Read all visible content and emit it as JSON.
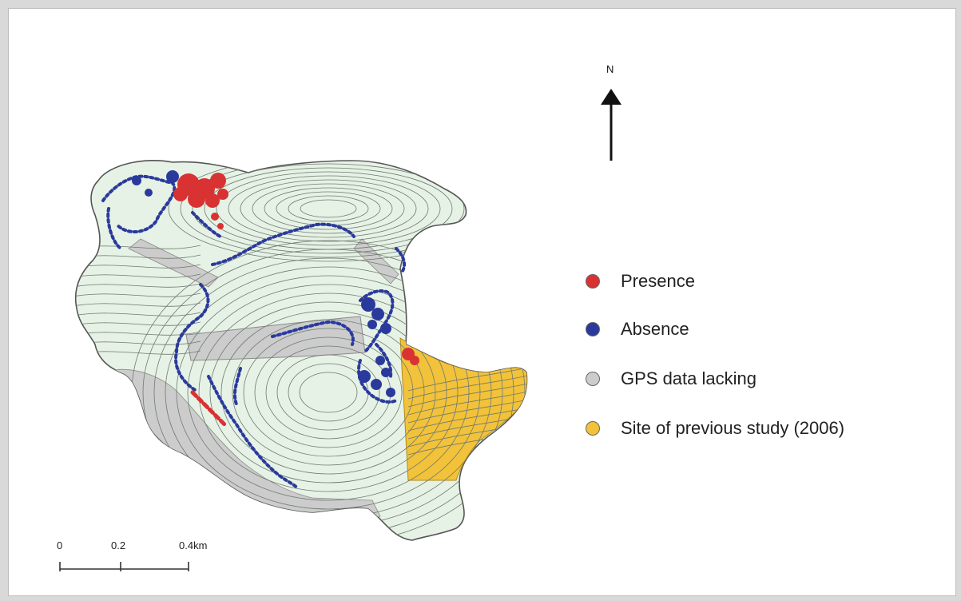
{
  "north_arrow": {
    "label": "N"
  },
  "legend": [
    {
      "key": "presence",
      "label": "Presence",
      "color": "#d93232",
      "icon": "red-dot-icon"
    },
    {
      "key": "absence",
      "label": "Absence",
      "color": "#2a3a9c",
      "icon": "blue-dot-icon"
    },
    {
      "key": "gps",
      "label": "GPS data lacking",
      "color": "#cccccc",
      "icon": "gray-dot-icon"
    },
    {
      "key": "previous",
      "label": "Site of previous study  (2006)",
      "color": "#f2c23a",
      "icon": "yellow-dot-icon"
    }
  ],
  "scale_bar": {
    "ticks": [
      "0",
      "0.2",
      "0.4km"
    ]
  },
  "colors": {
    "land_fill": "#e6f2e6",
    "contour": "#6f7a6f",
    "presence": "#d93232",
    "absence": "#2a3a9c",
    "gps_lacking": "#cccccc",
    "previous_study": "#f2c23a"
  }
}
